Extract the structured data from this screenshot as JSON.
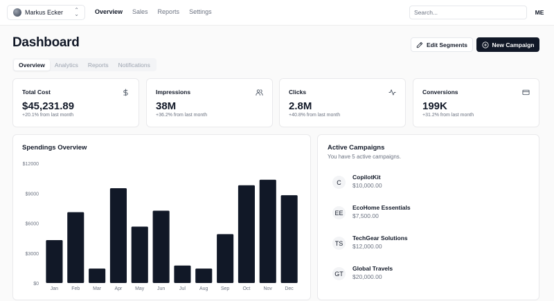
{
  "account": {
    "name": "Markus Ecker",
    "chevron": "⌃⌄"
  },
  "nav": {
    "items": [
      "Overview",
      "Sales",
      "Reports",
      "Settings"
    ]
  },
  "search": {
    "placeholder": "Search..."
  },
  "user": {
    "initials": "ME"
  },
  "page": {
    "title": "Dashboard"
  },
  "actions": {
    "edit_label": "Edit Segments",
    "new_label": "New Campaign"
  },
  "tabs": [
    "Overview",
    "Analytics",
    "Reports",
    "Notifications"
  ],
  "stats": [
    {
      "label": "Total Cost",
      "value": "$45,231.89",
      "sub": "+20.1% from last month",
      "icon": "dollar-icon"
    },
    {
      "label": "Impressions",
      "value": "38M",
      "sub": "+36.2% from last month",
      "icon": "users-icon"
    },
    {
      "label": "Clicks",
      "value": "2.8M",
      "sub": "+40.8% from last month",
      "icon": "activity-icon"
    },
    {
      "label": "Conversions",
      "value": "199K",
      "sub": "+31.2% from last month",
      "icon": "credit-card-icon"
    }
  ],
  "chart_data": {
    "type": "bar",
    "title": "Spendings Overview",
    "categories": [
      "Jan",
      "Feb",
      "Mar",
      "Apr",
      "May",
      "Jun",
      "Jul",
      "Aug",
      "Sep",
      "Oct",
      "Nov",
      "Dec"
    ],
    "values": [
      4300,
      7100,
      1450,
      9500,
      5650,
      7250,
      1750,
      1450,
      4900,
      9800,
      10350,
      8800
    ],
    "ylim": [
      0,
      12000
    ],
    "yticks": [
      0,
      3000,
      6000,
      9000,
      12000
    ],
    "ytick_labels": [
      "$0",
      "$3000",
      "$6000",
      "$9000",
      "$12000"
    ],
    "bar_color": "#111827",
    "xlabel": "",
    "ylabel": ""
  },
  "campaigns": {
    "title": "Active Campaigns",
    "subtitle": "You have 5 active campaigns.",
    "items": [
      {
        "initials": "C",
        "name": "CopilotKit",
        "amount": "$10,000.00"
      },
      {
        "initials": "EE",
        "name": "EcoHome Essentials",
        "amount": "$7,500.00"
      },
      {
        "initials": "TS",
        "name": "TechGear Solutions",
        "amount": "$12,000.00"
      },
      {
        "initials": "GT",
        "name": "Global Travels",
        "amount": "$20,000.00"
      }
    ]
  }
}
